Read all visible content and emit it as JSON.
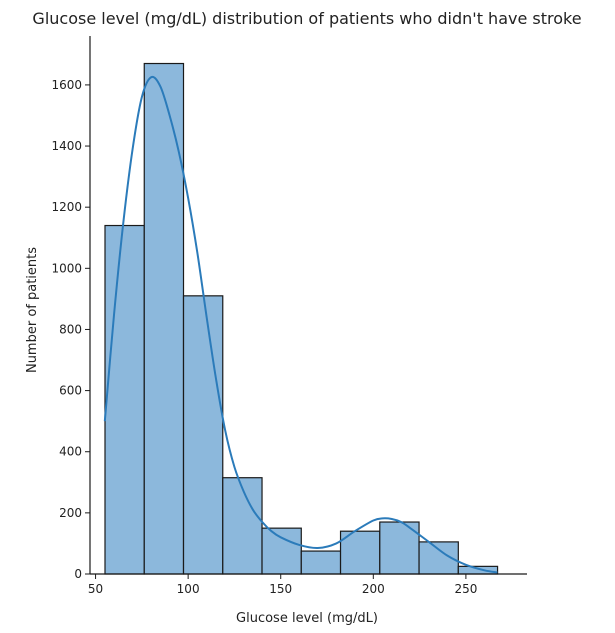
{
  "chart_data": {
    "type": "bar",
    "title": "Glucose level (mg/dL) distribution of patients who didn't have stroke",
    "xlabel": "Glucose level (mg/dL)",
    "ylabel": "Number of patients",
    "bin_edges": [
      55.1,
      76.3,
      97.5,
      118.7,
      139.9,
      161.1,
      182.3,
      203.5,
      224.7,
      245.9,
      267.1
    ],
    "values": [
      1140,
      1670,
      910,
      315,
      150,
      75,
      140,
      170,
      105,
      25
    ],
    "xlim": [
      47,
      283
    ],
    "ylim": [
      0,
      1760
    ],
    "xticks": [
      50,
      100,
      150,
      200,
      250
    ],
    "yticks": [
      0,
      200,
      400,
      600,
      800,
      1000,
      1200,
      1400,
      1600
    ],
    "kde": {
      "x": [
        55,
        60,
        65,
        70,
        75,
        80,
        85,
        90,
        95,
        100,
        105,
        110,
        115,
        120,
        125,
        130,
        135,
        140,
        145,
        150,
        160,
        170,
        180,
        190,
        200,
        205,
        210,
        215,
        220,
        230,
        240,
        250,
        260,
        267
      ],
      "y": [
        500,
        850,
        1150,
        1390,
        1560,
        1625,
        1595,
        1500,
        1380,
        1230,
        1050,
        840,
        640,
        470,
        350,
        270,
        210,
        170,
        140,
        120,
        95,
        85,
        100,
        140,
        175,
        182,
        180,
        170,
        150,
        105,
        60,
        30,
        12,
        5
      ]
    },
    "grid": false,
    "legend": "none",
    "colors": {
      "bar": "#7fb0d8",
      "edge": "#1a1a1a",
      "kde": "#2b7bba"
    }
  }
}
